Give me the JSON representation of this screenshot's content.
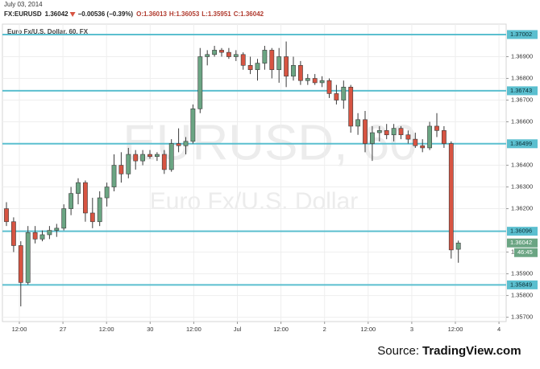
{
  "chart_data": {
    "type": "candlestick",
    "date": "July 03, 2014",
    "symbol": "FX:EURUSD",
    "last": "1.36042",
    "change": "−0.00536 (−0.39%)",
    "ohlc_text": [
      "O:1.36013",
      "H:1.36053",
      "L:1.35951",
      "C:1.36042"
    ],
    "legend_label": "Euro Fx/U.S. Dollar, 60, FX",
    "watermark": "EURUSD, 60",
    "watermark_sub": "Euro Fx/U.S. Dollar",
    "source_prefix": "Source:",
    "source_name": "TradingView.com",
    "countdown": "46:45",
    "up_color": "#6ba583",
    "down_color": "#d75442",
    "level_color": "#5bbfcf",
    "grid": true,
    "ylim": [
      1.3568,
      1.3705
    ],
    "yticks": [
      {
        "value": 1.357,
        "label": "1.35700"
      },
      {
        "value": 1.358,
        "label": "1.35800"
      },
      {
        "value": 1.359,
        "label": "1.35900"
      },
      {
        "value": 1.36,
        "label": "1.36000"
      },
      {
        "value": 1.362,
        "label": "1.36200"
      },
      {
        "value": 1.363,
        "label": "1.36300"
      },
      {
        "value": 1.364,
        "label": "1.36400"
      },
      {
        "value": 1.366,
        "label": "1.36600"
      },
      {
        "value": 1.367,
        "label": "1.36700"
      },
      {
        "value": 1.368,
        "label": "1.36800"
      },
      {
        "value": 1.369,
        "label": "1.36900"
      }
    ],
    "levels": [
      1.37002,
      1.36743,
      1.36499,
      1.36096,
      1.35849
    ],
    "current_price": 1.36042,
    "time_labels": [
      "12:00",
      "27",
      "12:00",
      "30",
      "12:00",
      "Jul",
      "12:00",
      "2",
      "12:00",
      "3",
      "12:00",
      "4"
    ],
    "open": [
      1.362,
      1.3614,
      1.3603,
      1.3586,
      1.3609,
      1.3606,
      1.3608,
      1.361,
      1.3611,
      1.362,
      1.3627,
      1.3632,
      1.3618,
      1.3614,
      1.3625,
      1.363,
      1.364,
      1.3636,
      1.3645,
      1.3642,
      1.3645,
      1.3644,
      1.3645,
      1.3638,
      1.365,
      1.3649,
      1.3651,
      1.3666,
      1.369,
      1.3691,
      1.3693,
      1.3692,
      1.369,
      1.3691,
      1.3686,
      1.3684,
      1.3687,
      1.3693,
      1.3684,
      1.369,
      1.3681,
      1.3686,
      1.3679,
      1.368,
      1.3678,
      1.3679,
      1.3673,
      1.367,
      1.3676,
      1.3658,
      1.3661,
      1.365,
      1.3655,
      1.3656,
      1.3654,
      1.3657,
      1.3654,
      1.3652,
      1.3649,
      1.3648,
      1.3658,
      1.3656,
      1.365,
      1.36013
    ],
    "high": [
      1.3623,
      1.3616,
      1.3605,
      1.3612,
      1.3612,
      1.361,
      1.3612,
      1.3613,
      1.3622,
      1.363,
      1.3634,
      1.3633,
      1.3625,
      1.3628,
      1.3632,
      1.3645,
      1.3646,
      1.3648,
      1.3647,
      1.3647,
      1.3647,
      1.3646,
      1.3647,
      1.3652,
      1.3657,
      1.3653,
      1.3668,
      1.3694,
      1.3693,
      1.3695,
      1.3694,
      1.3694,
      1.3693,
      1.3692,
      1.369,
      1.3689,
      1.3695,
      1.3694,
      1.3694,
      1.3697,
      1.369,
      1.3688,
      1.3682,
      1.3682,
      1.3681,
      1.368,
      1.3677,
      1.3679,
      1.3677,
      1.3664,
      1.3665,
      1.3658,
      1.3658,
      1.3659,
      1.3659,
      1.3658,
      1.3656,
      1.3655,
      1.3652,
      1.366,
      1.3664,
      1.3658,
      1.3651,
      1.36053
    ],
    "low": [
      1.3612,
      1.36,
      1.3575,
      1.3585,
      1.3604,
      1.3605,
      1.3606,
      1.3607,
      1.361,
      1.3617,
      1.3622,
      1.3614,
      1.3611,
      1.3612,
      1.3621,
      1.3628,
      1.3632,
      1.3634,
      1.3638,
      1.364,
      1.3643,
      1.3642,
      1.3636,
      1.3637,
      1.3646,
      1.3645,
      1.365,
      1.3664,
      1.3686,
      1.369,
      1.369,
      1.3689,
      1.3688,
      1.3684,
      1.3682,
      1.3679,
      1.3684,
      1.368,
      1.3678,
      1.3676,
      1.3679,
      1.3677,
      1.3677,
      1.3677,
      1.3676,
      1.3671,
      1.3668,
      1.3666,
      1.3655,
      1.3654,
      1.3646,
      1.3642,
      1.3651,
      1.3652,
      1.3651,
      1.3652,
      1.365,
      1.3648,
      1.3646,
      1.3647,
      1.3653,
      1.3648,
      1.3597,
      1.35951
    ],
    "close": [
      1.3614,
      1.3603,
      1.3586,
      1.3609,
      1.3606,
      1.3608,
      1.361,
      1.3611,
      1.362,
      1.3627,
      1.3632,
      1.3618,
      1.3614,
      1.3625,
      1.363,
      1.364,
      1.3636,
      1.3645,
      1.3642,
      1.3645,
      1.3644,
      1.3645,
      1.3638,
      1.365,
      1.3649,
      1.3651,
      1.3666,
      1.369,
      1.3691,
      1.3693,
      1.3692,
      1.369,
      1.3691,
      1.3686,
      1.3684,
      1.3687,
      1.3693,
      1.3684,
      1.369,
      1.3681,
      1.3686,
      1.3679,
      1.368,
      1.3678,
      1.3679,
      1.3673,
      1.367,
      1.3676,
      1.3658,
      1.3661,
      1.365,
      1.3655,
      1.3656,
      1.3654,
      1.3657,
      1.3654,
      1.3652,
      1.3649,
      1.3648,
      1.3658,
      1.3656,
      1.365,
      1.3601,
      1.36042
    ]
  }
}
